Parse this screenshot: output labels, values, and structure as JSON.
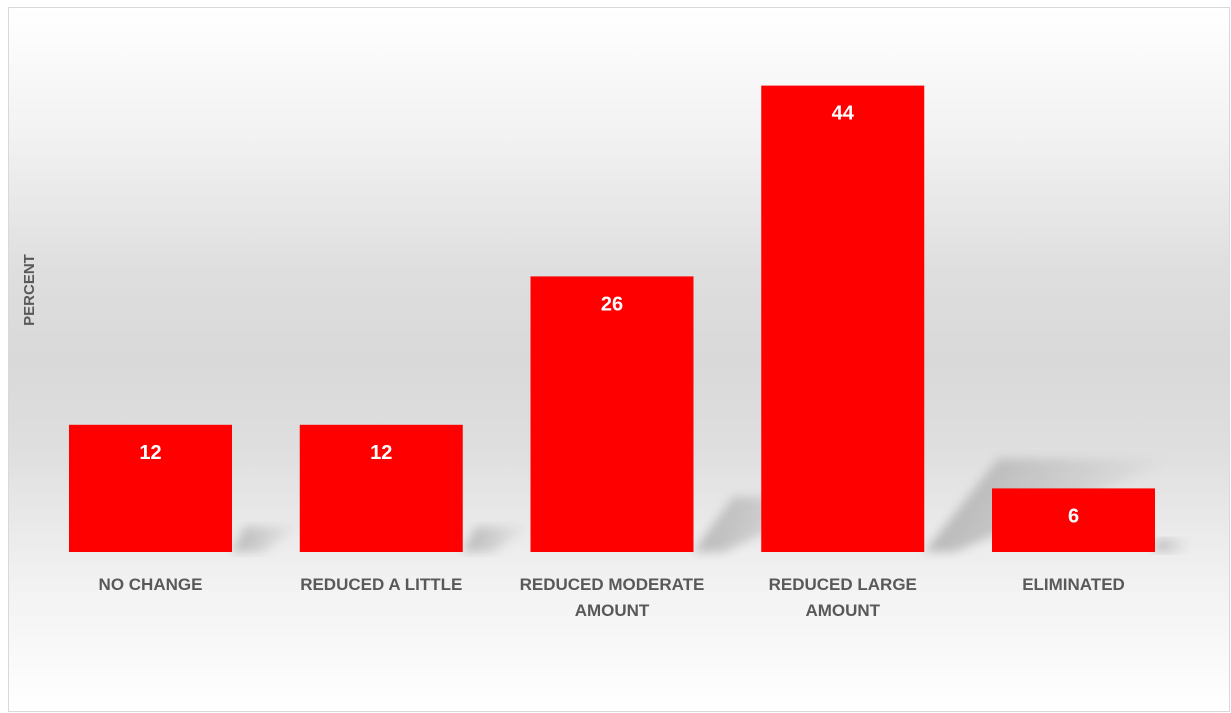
{
  "chart_data": {
    "type": "bar",
    "title": "",
    "xlabel": "",
    "ylabel": "PERCENT",
    "categories": [
      [
        "NO CHANGE"
      ],
      [
        "REDUCED A LITTLE"
      ],
      [
        "REDUCED MODERATE",
        "AMOUNT"
      ],
      [
        "REDUCED LARGE",
        "AMOUNT"
      ],
      [
        "ELIMINATED"
      ]
    ],
    "values": [
      12,
      12,
      26,
      44,
      6
    ],
    "ylim": [
      0,
      50
    ],
    "grid": false,
    "legend": "none",
    "bar_color": "#ff0000",
    "label_color": "#ffffff",
    "text_color": "#595959"
  }
}
